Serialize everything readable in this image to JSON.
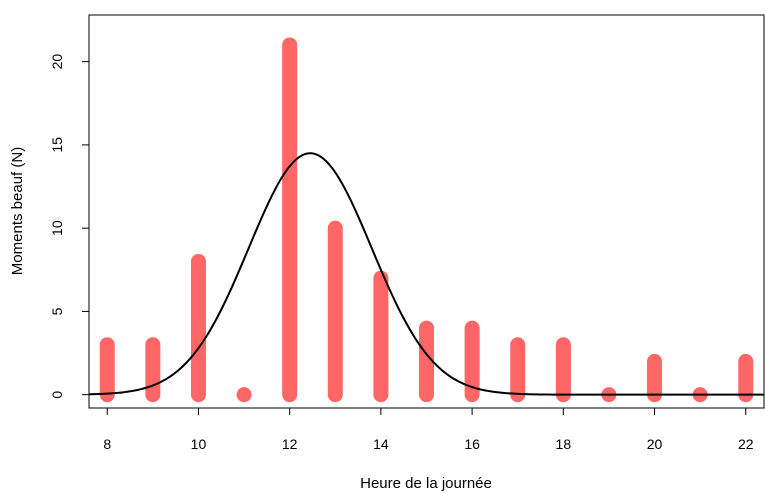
{
  "chart_data": {
    "type": "bar",
    "xlabel": "Heure de la journée",
    "ylabel": "Moments beauf (N)",
    "xlim": [
      7.6,
      22.4
    ],
    "ylim": [
      -0.8,
      22.8
    ],
    "x": [
      8,
      9,
      10,
      11,
      12,
      13,
      14,
      15,
      16,
      17,
      18,
      19,
      20,
      21,
      22
    ],
    "values": [
      3,
      3,
      8,
      0,
      21,
      10,
      7,
      4,
      4,
      3,
      3,
      0,
      2,
      0,
      2
    ],
    "x_ticks": [
      8,
      10,
      12,
      14,
      16,
      18,
      20,
      22
    ],
    "y_ticks": [
      0,
      5,
      10,
      15,
      20
    ],
    "bar_color": "#FF6666",
    "curve": {
      "type": "normal",
      "color": "#000000",
      "mean": 12.45,
      "sd": 1.35,
      "peak": 14.5
    },
    "grid": false
  }
}
